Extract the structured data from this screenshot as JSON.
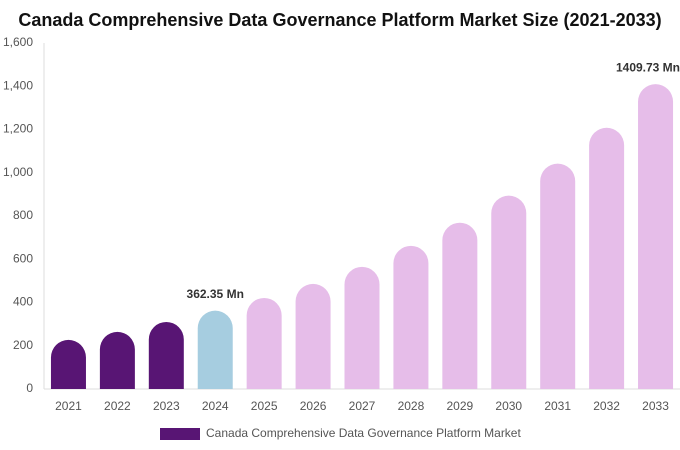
{
  "chart_data": {
    "type": "bar",
    "title": "Canada Comprehensive Data Governance Platform Market Size (2021-2033)",
    "categories": [
      "2021",
      "2022",
      "2023",
      "2024",
      "2025",
      "2026",
      "2027",
      "2028",
      "2029",
      "2030",
      "2031",
      "2032",
      "2033"
    ],
    "series": [
      {
        "name": "Canada Comprehensive Data Governance Platform Market",
        "color": "#581574",
        "values": [
          227,
          264,
          310,
          362.35,
          421,
          486,
          565,
          662,
          769,
          894,
          1042,
          1208,
          1409.73
        ],
        "value_labels": [
          null,
          null,
          null,
          "362.35 Mn",
          null,
          null,
          null,
          null,
          null,
          null,
          null,
          null,
          "1409.73 Mn"
        ],
        "colors": [
          "#581574",
          "#581574",
          "#581574",
          "#a6cde0",
          "#e6bde9",
          "#e6bde9",
          "#e6bde9",
          "#e6bde9",
          "#e6bde9",
          "#e6bde9",
          "#e6bde9",
          "#e6bde9",
          "#e6bde9"
        ]
      }
    ],
    "ylim": [
      0,
      1600
    ],
    "yticks": [
      0,
      200,
      400,
      600,
      800,
      {
        "value": 1000,
        "label": "1,000"
      },
      {
        "value": 1200,
        "label": "1,200"
      },
      {
        "value": 1400,
        "label": "1,400"
      },
      {
        "value": 1600,
        "label": "1,600"
      }
    ],
    "grid": false
  }
}
